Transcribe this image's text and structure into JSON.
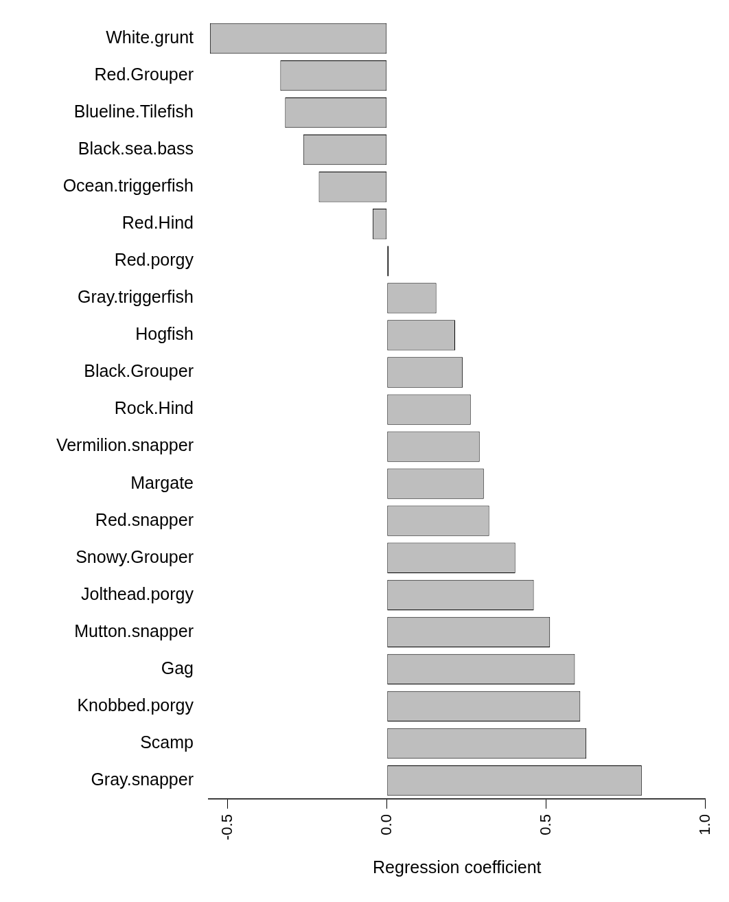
{
  "chart_data": {
    "type": "bar",
    "orientation": "horizontal",
    "xlabel": "Regression coefficient",
    "categories": [
      "White.grunt",
      "Red.Grouper",
      "Blueline.Tilefish",
      "Black.sea.bass",
      "Ocean.triggerfish",
      "Red.Hind",
      "Red.porgy",
      "Gray.triggerfish",
      "Hogfish",
      "Black.Grouper",
      "Rock.Hind",
      "Vermilion.snapper",
      "Margate",
      "Red.snapper",
      "Snowy.Grouper",
      "Jolthead.porgy",
      "Mutton.snapper",
      "Gag",
      "Knobbed.porgy",
      "Scamp",
      "Gray.snapper"
    ],
    "values": [
      -0.556,
      -0.335,
      -0.32,
      -0.263,
      -0.214,
      -0.045,
      0.005,
      0.155,
      0.214,
      0.238,
      0.263,
      0.291,
      0.304,
      0.321,
      0.403,
      0.461,
      0.512,
      0.59,
      0.607,
      0.626,
      0.8
    ],
    "colors": [
      "#bebebe",
      "#bebebe",
      "#bebebe",
      "#bebebe",
      "#bebebe",
      "#bebebe",
      "#000000",
      "#bebebe",
      "#bebebe",
      "#bebebe",
      "#bebebe",
      "#bebebe",
      "#bebebe",
      "#bebebe",
      "#bebebe",
      "#bebebe",
      "#bebebe",
      "#bebebe",
      "#bebebe",
      "#bebebe",
      "#bebebe"
    ],
    "xlim": [
      -0.56,
      1.0
    ],
    "xticks": [
      {
        "value": -0.5,
        "label": "-0.5"
      },
      {
        "value": 0,
        "label": "0.0"
      },
      {
        "value": 0.5,
        "label": "0.5"
      },
      {
        "value": 1,
        "label": "1.0"
      }
    ],
    "grid": false,
    "legend": false
  }
}
